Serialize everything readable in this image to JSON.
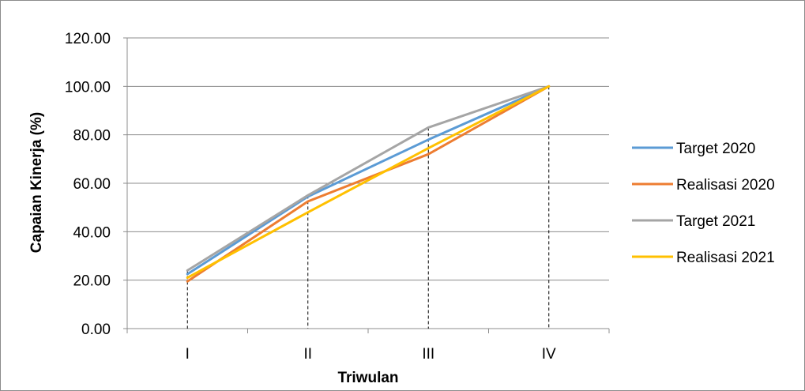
{
  "chart_data": {
    "type": "line",
    "categories": [
      "I",
      "II",
      "III",
      "IV"
    ],
    "series": [
      {
        "name": "Target 2020",
        "values": [
          22.5,
          54.5,
          78.0,
          100.0
        ],
        "color": "#5b9bd5"
      },
      {
        "name": "Realisasi 2020",
        "values": [
          19.5,
          52.5,
          72.0,
          100.0
        ],
        "color": "#ed7d31"
      },
      {
        "name": "Target 2021",
        "values": [
          24.0,
          55.0,
          83.0,
          100.0
        ],
        "color": "#a5a5a5"
      },
      {
        "name": "Realisasi 2021",
        "values": [
          21.0,
          48.0,
          74.5,
          100.0
        ],
        "color": "#ffc000"
      }
    ],
    "xlabel": "Triwulan",
    "ylabel": "Capaian Kinerja (%)",
    "ylim": [
      0,
      120
    ],
    "yticks": [
      "0.00",
      "20.00",
      "40.00",
      "60.00",
      "80.00",
      "100.00",
      "120.00"
    ],
    "grid": true,
    "drop_lines": true,
    "legend_position": "right"
  }
}
